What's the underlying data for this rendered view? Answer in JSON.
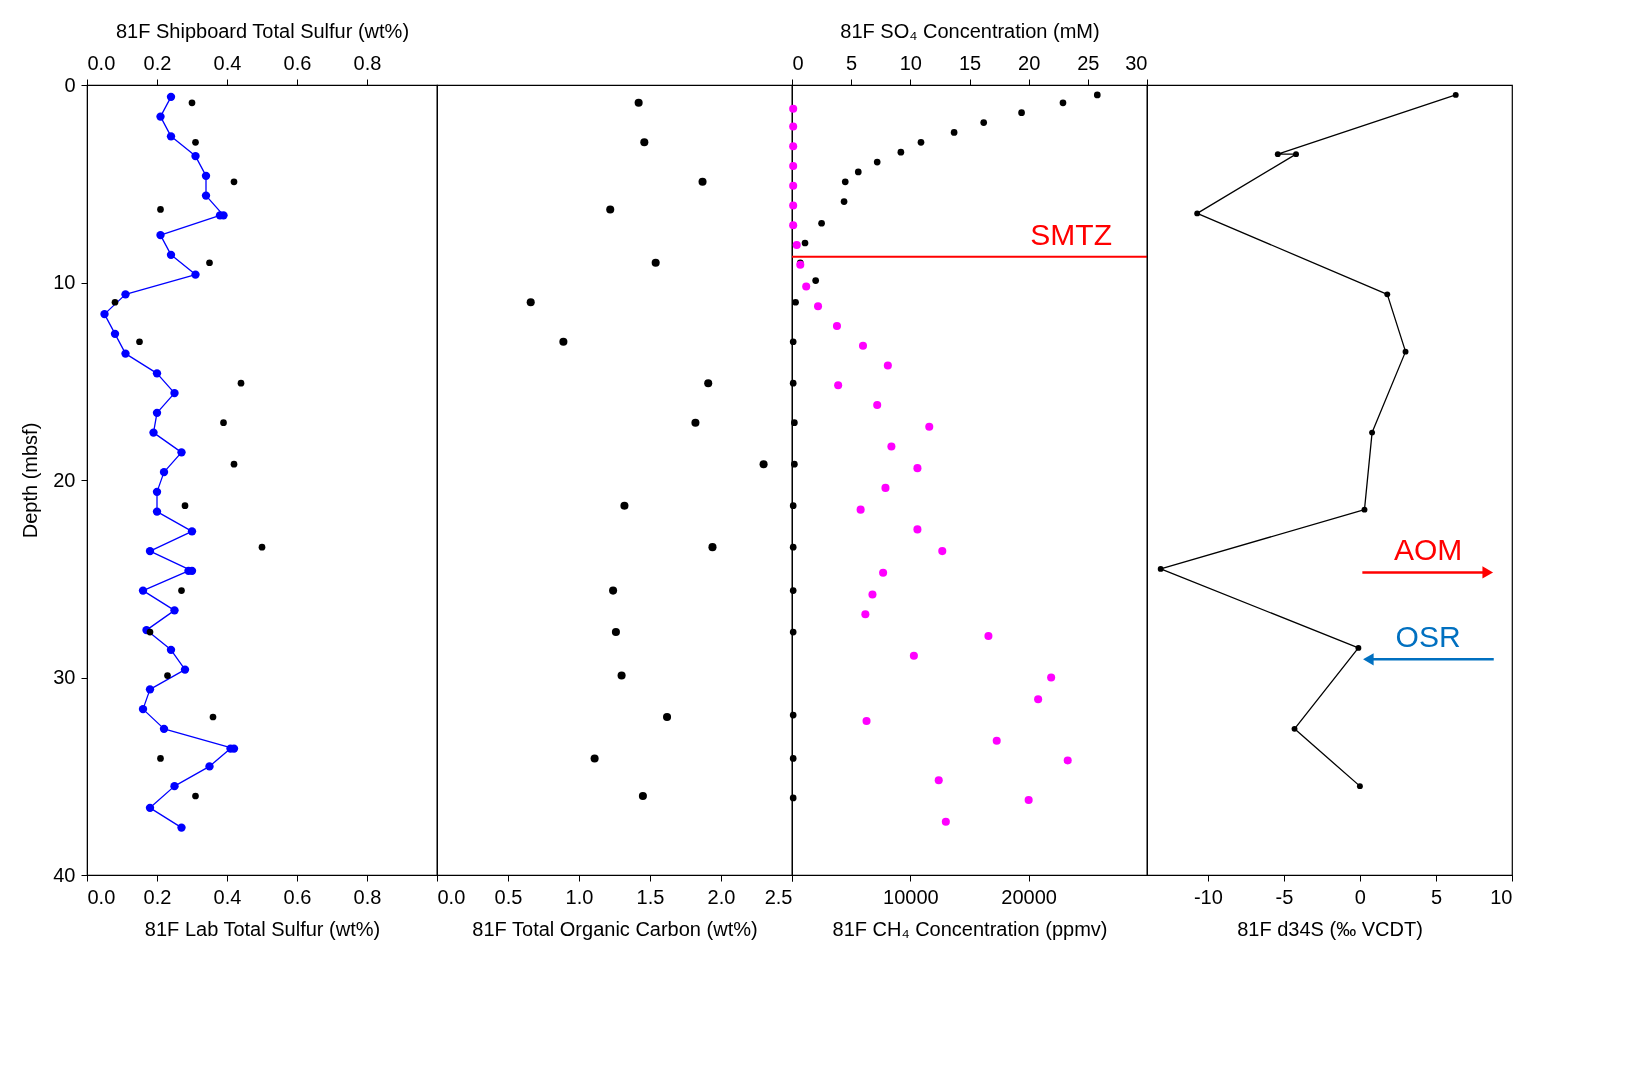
{
  "chart_data": [
    {
      "type": "line",
      "xlabel": "81F Lab Total Sulfur (wt%)",
      "x2label": "81F Shipboard Total Sulfur (wt%)",
      "ylabel": "Depth (mbsf)",
      "xlim": [
        0,
        1.0
      ],
      "xticks": [
        {
          "value": 0,
          "label": "0.0"
        },
        0.2,
        0.4,
        0.6,
        0.8
      ],
      "x2lim": [
        0,
        1.0
      ],
      "x2ticks": [
        {
          "value": 0,
          "label": "0.0"
        },
        0.2,
        0.4,
        0.6,
        0.8
      ],
      "ylim": [
        40,
        0
      ],
      "yticks": [
        0,
        10,
        20,
        30,
        40
      ],
      "grid": false,
      "series": [
        {
          "marker": "circle",
          "color": "#0000ff",
          "x": [
            0.24,
            0.21,
            0.24,
            0.31,
            0.34,
            0.34,
            0.39,
            0.38,
            0.21,
            0.24,
            0.31,
            0.11,
            0.05,
            0.08,
            0.11,
            0.2,
            0.25,
            0.2,
            0.19,
            0.27,
            0.22,
            0.2,
            0.2,
            0.3,
            0.18,
            0.3,
            0.29,
            0.16,
            0.25,
            0.17,
            0.24,
            0.28,
            0.18,
            0.16,
            0.22,
            0.42,
            0.41,
            0.35,
            0.25,
            0.18,
            0.27
          ],
          "values": [
            0.6,
            1.6,
            2.6,
            3.6,
            4.6,
            5.6,
            6.6,
            6.6,
            7.6,
            8.6,
            9.6,
            10.6,
            11.6,
            12.6,
            13.6,
            14.6,
            15.6,
            16.6,
            17.6,
            18.6,
            19.6,
            20.6,
            21.6,
            22.6,
            23.6,
            24.6,
            24.6,
            25.6,
            26.6,
            27.6,
            28.6,
            29.6,
            30.6,
            31.6,
            32.6,
            33.6,
            33.6,
            34.5,
            35.5,
            36.6,
            37.6
          ]
        },
        {
          "type": "scatter",
          "marker": "circle",
          "axis": "x2",
          "color": "#000000",
          "x": [
            0.3,
            0.31,
            0.42,
            0.21,
            0.35,
            0.08,
            0.15,
            0.44,
            0.39,
            0.42,
            0.28,
            0.5,
            0.27,
            0.18,
            0.23,
            0.36,
            0.21,
            0.31
          ],
          "values": [
            0.9,
            2.9,
            4.9,
            6.3,
            9.0,
            11.0,
            13.0,
            15.1,
            17.1,
            19.2,
            21.3,
            23.4,
            25.6,
            27.7,
            29.9,
            32.0,
            34.1,
            36.0
          ]
        }
      ]
    },
    {
      "type": "scatter",
      "xlabel": "81F Total Organic Carbon (wt%)",
      "xlim": [
        0,
        2.5
      ],
      "xticks": [
        {
          "value": 0,
          "label": "0.0"
        },
        0.5,
        {
          "value": 1,
          "label": "1.0"
        },
        1.5,
        {
          "value": 2,
          "label": "2.0"
        },
        2.5
      ],
      "ylim": [
        40,
        0
      ],
      "yticks": [
        0,
        10,
        20,
        30,
        40
      ],
      "tick_labels": "x",
      "grid": false,
      "series": [
        {
          "marker": "circle",
          "color": "#000000",
          "x": [
            1.42,
            1.46,
            1.87,
            1.22,
            1.54,
            0.66,
            0.89,
            1.91,
            1.82,
            2.3,
            1.32,
            1.94,
            1.24,
            1.26,
            1.3,
            1.62,
            1.11,
            1.45
          ],
          "values": [
            0.9,
            2.9,
            4.9,
            6.3,
            9.0,
            11.0,
            13.0,
            15.1,
            17.1,
            19.2,
            21.3,
            23.4,
            25.6,
            27.7,
            29.9,
            32.0,
            34.1,
            36.0
          ]
        }
      ]
    },
    {
      "type": "scatter",
      "xlabel": "81F CH₄ Concentration (ppmv)",
      "x2label": "81F SO₄ Concentration (mM)",
      "xlim": [
        0,
        30000
      ],
      "xticks": [
        {
          "value": 0,
          "label": null
        },
        10000,
        20000
      ],
      "x2lim": [
        0,
        30
      ],
      "x2ticks": [
        0,
        5,
        10,
        15,
        20,
        25,
        30
      ],
      "ylim": [
        40,
        0
      ],
      "yticks": [
        0,
        10,
        20,
        30,
        40
      ],
      "tick_labels": "x",
      "grid": false,
      "series": [
        {
          "marker": "circle",
          "axis": "x2",
          "color": "#000000",
          "x": [
            25.8,
            22.9,
            19.4,
            16.2,
            13.7,
            10.9,
            9.2,
            7.2,
            5.6,
            4.5,
            4.4,
            2.5,
            1.1,
            0.7,
            2.0,
            0.3,
            0.1,
            0.1,
            0.2,
            0.2,
            0.1,
            0.1,
            0.1,
            0.1,
            0.1,
            0.1,
            0.1
          ],
          "values": [
            0.5,
            0.9,
            1.4,
            1.9,
            2.4,
            2.9,
            3.4,
            3.9,
            4.4,
            4.9,
            5.9,
            7.0,
            8.0,
            9.0,
            9.9,
            11.0,
            13.0,
            15.1,
            17.1,
            19.2,
            21.3,
            23.4,
            25.6,
            27.7,
            31.9,
            34.1,
            36.1
          ]
        },
        {
          "marker": "circle",
          "color": "#ff00ff",
          "x": [
            100,
            100,
            100,
            100,
            100,
            100,
            100,
            400,
            700,
            1200,
            2200,
            3800,
            6000,
            8100,
            3900,
            7200,
            11600,
            8400,
            10600,
            7900,
            5800,
            10600,
            12700,
            7700,
            6800,
            6200,
            16600,
            10300,
            21900,
            20800,
            6300,
            17300,
            23300,
            12400,
            20000,
            13000
          ],
          "values": [
            1.2,
            2.1,
            3.1,
            4.1,
            5.1,
            6.1,
            7.1,
            8.1,
            9.1,
            10.2,
            11.2,
            12.2,
            13.2,
            14.2,
            15.2,
            16.2,
            17.3,
            18.3,
            19.4,
            20.4,
            21.5,
            22.5,
            23.6,
            24.7,
            25.8,
            26.8,
            27.9,
            28.9,
            30.0,
            31.1,
            32.2,
            33.2,
            34.2,
            35.2,
            36.2,
            37.3
          ]
        }
      ],
      "ref_lines": [
        {
          "axis": "y",
          "value": 8.7,
          "label": "SMTZ",
          "color": "#ff0000"
        }
      ]
    },
    {
      "type": "line",
      "xlabel": "81F d34S (‰ VCDT)",
      "xlim": [
        -14,
        10
      ],
      "xticks": [
        -10,
        -5,
        0,
        5,
        10
      ],
      "ylim": [
        40,
        0
      ],
      "yticks": [
        0,
        10,
        20,
        30,
        40
      ],
      "tick_labels": "x",
      "grid": false,
      "marker": "circle",
      "series": [
        {
          "color": "#000000",
          "x": [
            6.3,
            -5.4,
            -4.2,
            -10.7,
            1.8,
            3.0,
            0.8,
            0.3,
            -13.1,
            -0.1,
            -4.3,
            0.0
          ],
          "values": [
            0.5,
            3.5,
            3.5,
            6.5,
            10.6,
            13.5,
            17.6,
            21.5,
            24.5,
            28.5,
            32.6,
            35.5
          ]
        }
      ],
      "annotations": [
        "AOM",
        "OSR"
      ]
    }
  ]
}
